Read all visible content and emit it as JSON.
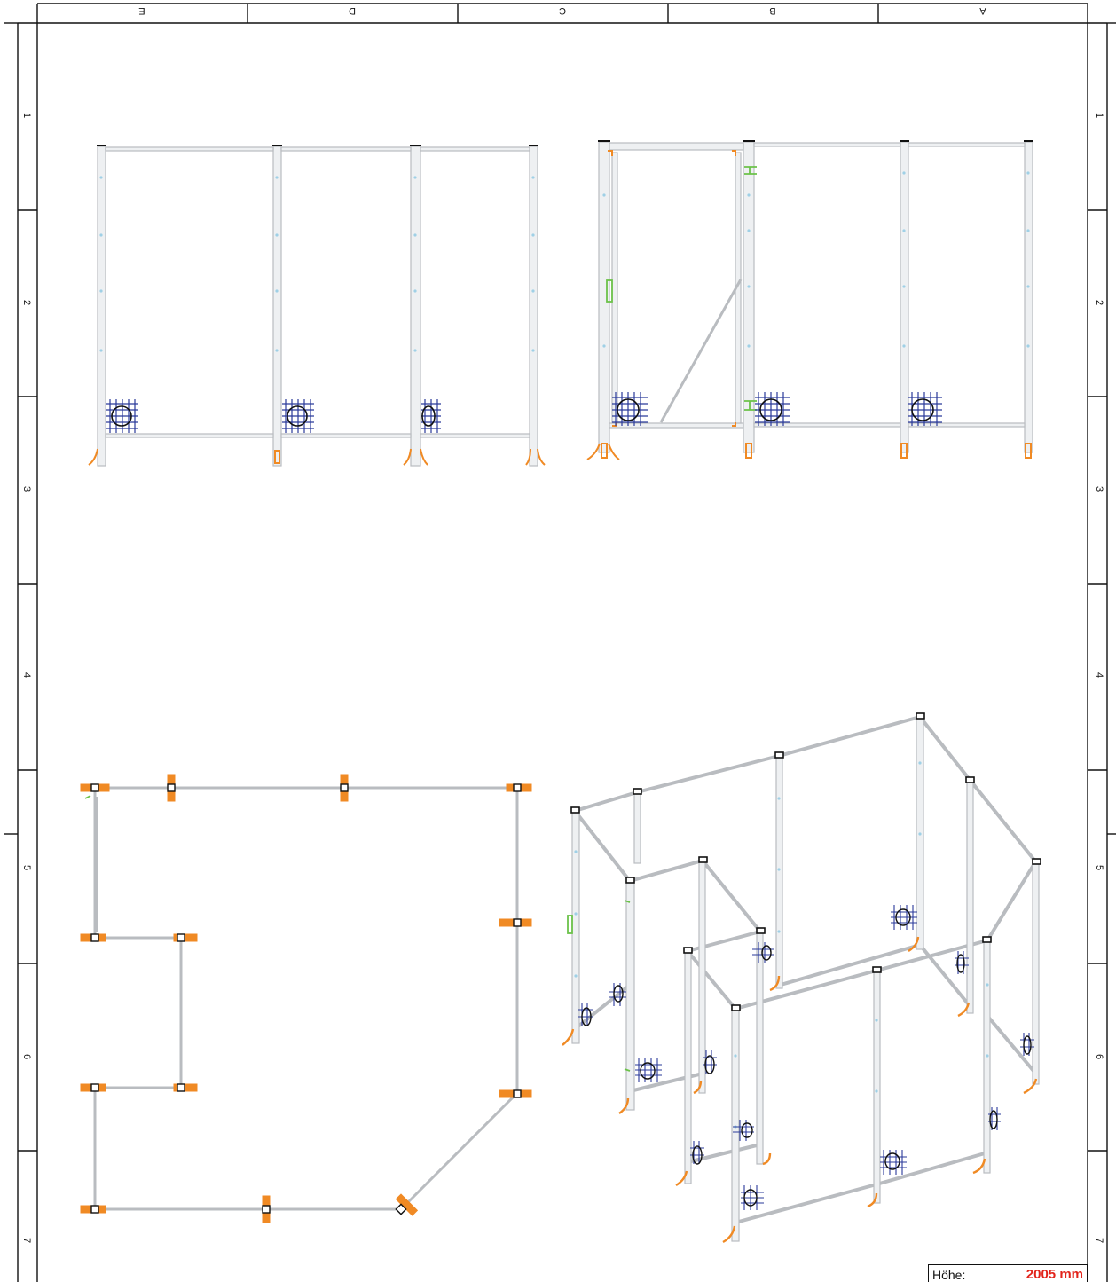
{
  "sheet": {
    "columns": [
      "E",
      "D",
      "C",
      "B",
      "A"
    ],
    "rows": [
      "1",
      "2",
      "3",
      "4",
      "5",
      "6",
      "7"
    ]
  },
  "title_block": {
    "height_label": "Höhe:",
    "height_value": "2005 mm"
  },
  "colors": {
    "frame": "#111111",
    "profile": "#b9bcc0",
    "profile_fill": "#eef0f2",
    "foot": "#f08a24",
    "mesh": "#2a3a9a",
    "hinge": "#6cc24a",
    "marker": "#9fd0e6",
    "accent_value": "#e2231a"
  }
}
